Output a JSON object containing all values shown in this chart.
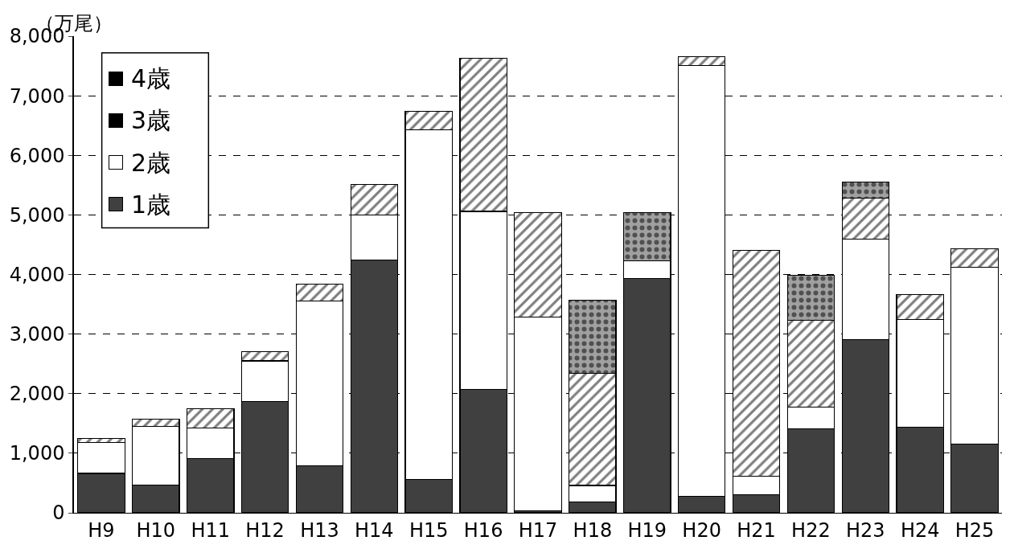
{
  "chart_data": {
    "type": "bar",
    "stacked": true,
    "ylabel": "（万尾）",
    "categories": [
      "H9",
      "H10",
      "H11",
      "H12",
      "H13",
      "H14",
      "H15",
      "H16",
      "H17",
      "H18",
      "H19",
      "H20",
      "H21",
      "H22",
      "H23",
      "H24",
      "H25"
    ],
    "series": [
      {
        "name": "1歳",
        "color": "#404040",
        "values": [
          660,
          470,
          910,
          1870,
          790,
          4240,
          560,
          2070,
          30,
          180,
          3930,
          280,
          300,
          1410,
          2910,
          1440,
          1150
        ]
      },
      {
        "name": "2歳",
        "color": "#ffffff",
        "values": [
          520,
          980,
          510,
          680,
          2770,
          760,
          5870,
          2990,
          3260,
          280,
          300,
          7230,
          310,
          360,
          1680,
          1800,
          2970
        ]
      },
      {
        "name": "3歳",
        "color": "#000000",
        "values": [
          70,
          120,
          330,
          160,
          280,
          510,
          310,
          2570,
          1750,
          1880,
          0,
          150,
          3800,
          1460,
          690,
          420,
          310
        ]
      },
      {
        "name": "4歳",
        "color": "#000000",
        "values": [
          0,
          0,
          0,
          0,
          0,
          0,
          0,
          0,
          0,
          1230,
          810,
          0,
          0,
          760,
          270,
          0,
          0
        ]
      }
    ],
    "ylim": [
      0,
      8000
    ],
    "yticks": [
      0,
      {
        "value": 1000,
        "label": "1,000"
      },
      {
        "value": 2000,
        "label": "2,000"
      },
      {
        "value": 3000,
        "label": "3,000"
      },
      {
        "value": 4000,
        "label": "4,000"
      },
      {
        "value": 5000,
        "label": "5,000"
      },
      {
        "value": 6000,
        "label": "6,000"
      },
      {
        "value": 7000,
        "label": "7,000"
      },
      {
        "value": 8000,
        "label": "8,000"
      }
    ],
    "grid": "y",
    "legend": "top left"
  }
}
